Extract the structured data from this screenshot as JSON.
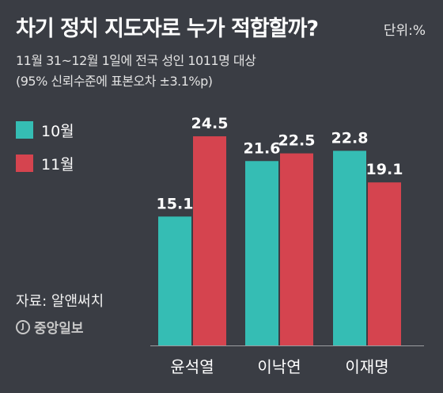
{
  "title": "차기 정치 지도자로 누가 적합할까?",
  "unit": "단위:%",
  "subtitle_line1": "11월 31~12월 1일에 전국 성인 1011명 대상",
  "subtitle_line2": "(95% 신뢰수준에 표본오차 ±3.1%p)",
  "source": "자료: 알앤써치",
  "logo_text": "중앙일보",
  "colors": {
    "oct": "#35bdb4",
    "nov": "#d5444f",
    "background": "#3a3d44",
    "axis": "#9a9ca0"
  },
  "chart_data": {
    "type": "bar",
    "categories": [
      "윤석열",
      "이낙연",
      "이재명"
    ],
    "series": [
      {
        "name": "10월",
        "values": [
          15.1,
          21.6,
          22.8
        ]
      },
      {
        "name": "11월",
        "values": [
          24.5,
          22.5,
          19.1
        ]
      }
    ],
    "ylim": [
      0,
      28.4
    ],
    "title": "차기 정치 지도자로 누가 적합할까?",
    "xlabel": "",
    "ylabel": "",
    "grid": false,
    "legend": "left"
  }
}
